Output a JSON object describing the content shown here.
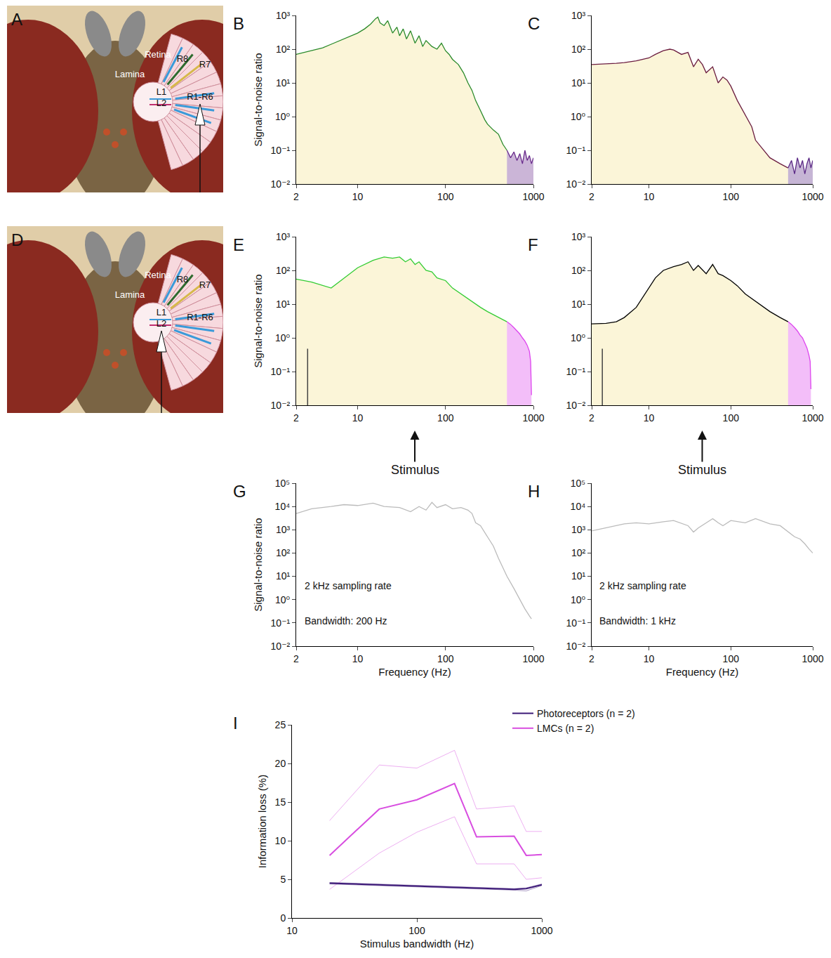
{
  "diagrams": [
    {
      "panel": "A",
      "labels": [
        "Retina",
        "Lamina",
        "R8",
        "R7",
        "L1",
        "L2",
        "R1-R6"
      ],
      "target": "R1-R6"
    },
    {
      "panel": "D",
      "labels": [
        "Retina",
        "Lamina",
        "R8",
        "R7",
        "L1",
        "L2",
        "R1-R6"
      ],
      "target": "L2"
    }
  ],
  "chart_data": [
    {
      "panel": "B",
      "type": "area",
      "log": true,
      "grid": false,
      "y_label": "Signal-to-noise ratio",
      "xlim": [
        2,
        1000
      ],
      "xticks": [
        2,
        10,
        100,
        1000
      ],
      "ylim": [
        0.01,
        1000
      ],
      "yticks": [
        {
          "value": 0.01,
          "label": "10⁻²"
        },
        {
          "value": 0.1,
          "label": "10⁻¹"
        },
        {
          "value": 1,
          "label": "10⁰"
        },
        {
          "value": 10,
          "label": "10¹"
        },
        {
          "value": 100,
          "label": "10²"
        },
        {
          "value": 1000,
          "label": "10³"
        }
      ],
      "threshold": 1,
      "series": [
        {
          "color": "#2a8a2a",
          "x": [
            2,
            3,
            4,
            5,
            6,
            7,
            8,
            10,
            12,
            14,
            16,
            17,
            18,
            20,
            22,
            25,
            28,
            30,
            33,
            36,
            40,
            45,
            50,
            55,
            60,
            70,
            80,
            90,
            100,
            110,
            120,
            140,
            160,
            180,
            200,
            220,
            250,
            280,
            300,
            350,
            400,
            450,
            500
          ],
          "values": [
            70,
            90,
            110,
            140,
            170,
            200,
            230,
            300,
            400,
            550,
            800,
            900,
            600,
            500,
            700,
            300,
            450,
            250,
            400,
            200,
            350,
            150,
            250,
            120,
            180,
            120,
            100,
            150,
            90,
            70,
            50,
            35,
            20,
            10,
            6,
            3,
            1.5,
            0.8,
            0.6,
            0.4,
            0.3,
            0.15,
            0.1
          ]
        },
        {
          "color": "#6a2c8c",
          "x": [
            500,
            550,
            600,
            650,
            700,
            750,
            800,
            850,
            900,
            950,
            1000
          ],
          "values": [
            0.1,
            0.06,
            0.09,
            0.05,
            0.08,
            0.04,
            0.1,
            0.05,
            0.07,
            0.04,
            0.06
          ]
        }
      ]
    },
    {
      "panel": "C",
      "type": "area",
      "log": true,
      "grid": false,
      "xlim": [
        2,
        1000
      ],
      "xticks": [
        2,
        10,
        100,
        1000
      ],
      "ylim": [
        0.01,
        1000
      ],
      "yticks": [
        {
          "value": 0.01,
          "label": "10⁻²"
        },
        {
          "value": 0.1,
          "label": "10⁻¹"
        },
        {
          "value": 1,
          "label": "10⁰"
        },
        {
          "value": 10,
          "label": "10¹"
        },
        {
          "value": 100,
          "label": "10²"
        },
        {
          "value": 1000,
          "label": "10³"
        }
      ],
      "threshold": 1,
      "series": [
        {
          "color": "#6b1d3f",
          "x": [
            2,
            3,
            4,
            5,
            7,
            10,
            12,
            15,
            18,
            20,
            25,
            30,
            35,
            40,
            45,
            50,
            60,
            70,
            80,
            90,
            100,
            120,
            140,
            160,
            180,
            200,
            250,
            300,
            400,
            500
          ],
          "values": [
            35,
            36,
            38,
            40,
            45,
            55,
            70,
            90,
            100,
            95,
            70,
            80,
            30,
            50,
            35,
            20,
            30,
            10,
            15,
            12,
            8,
            3,
            1.5,
            0.8,
            0.5,
            0.2,
            0.1,
            0.06,
            0.04,
            0.03
          ]
        },
        {
          "color": "#5c2a86",
          "x": [
            500,
            550,
            600,
            650,
            700,
            750,
            800,
            850,
            900,
            950,
            1000
          ],
          "values": [
            0.03,
            0.05,
            0.02,
            0.06,
            0.03,
            0.05,
            0.02,
            0.04,
            0.06,
            0.03,
            0.05
          ]
        }
      ]
    },
    {
      "panel": "E",
      "type": "area",
      "log": true,
      "grid": false,
      "y_label": "Signal-to-noise ratio",
      "xlim": [
        2,
        1000
      ],
      "xticks": [
        2,
        10,
        100,
        1000
      ],
      "ylim": [
        0.01,
        1000
      ],
      "yticks": [
        {
          "value": 0.01,
          "label": "10⁻²"
        },
        {
          "value": 0.1,
          "label": "10⁻¹"
        },
        {
          "value": 1,
          "label": "10⁰"
        },
        {
          "value": 10,
          "label": "10¹"
        },
        {
          "value": 100,
          "label": "10²"
        },
        {
          "value": 1000,
          "label": "10³"
        }
      ],
      "threshold": 1,
      "series": [
        {
          "color": "#33cc33",
          "x": [
            2,
            3,
            5,
            7,
            10,
            15,
            20,
            25,
            30,
            35,
            40,
            45,
            50,
            60,
            70,
            80,
            100,
            120,
            150,
            200,
            250,
            300,
            400,
            500
          ],
          "values": [
            55,
            45,
            30,
            60,
            120,
            200,
            250,
            230,
            250,
            180,
            220,
            150,
            180,
            100,
            90,
            60,
            50,
            30,
            20,
            12,
            8,
            6,
            4,
            3
          ]
        },
        {
          "color": "#dd44ee",
          "x": [
            500,
            550,
            600,
            650,
            700,
            750,
            800,
            850,
            900,
            930,
            950
          ],
          "values": [
            3,
            2.5,
            2,
            1.6,
            1.3,
            1,
            0.8,
            0.6,
            0.4,
            0.2,
            0.02
          ]
        }
      ]
    },
    {
      "panel": "F",
      "type": "area",
      "log": true,
      "grid": false,
      "xlim": [
        2,
        1000
      ],
      "xticks": [
        2,
        10,
        100,
        1000
      ],
      "ylim": [
        0.01,
        1000
      ],
      "yticks": [
        {
          "value": 0.01,
          "label": "10⁻²"
        },
        {
          "value": 0.1,
          "label": "10⁻¹"
        },
        {
          "value": 1,
          "label": "10⁰"
        },
        {
          "value": 10,
          "label": "10¹"
        },
        {
          "value": 100,
          "label": "10²"
        },
        {
          "value": 1000,
          "label": "10³"
        }
      ],
      "threshold": 1,
      "series": [
        {
          "color": "#000000",
          "x": [
            2,
            3,
            4,
            5,
            7,
            10,
            12,
            15,
            20,
            25,
            30,
            35,
            40,
            50,
            60,
            70,
            80,
            100,
            120,
            150,
            200,
            250,
            300,
            400,
            500
          ],
          "values": [
            2.6,
            2.7,
            3,
            4,
            8,
            30,
            60,
            100,
            130,
            150,
            180,
            100,
            140,
            80,
            150,
            80,
            70,
            50,
            35,
            20,
            12,
            8,
            6,
            4,
            3
          ]
        },
        {
          "color": "#dd44ee",
          "x": [
            500,
            550,
            600,
            650,
            700,
            750,
            800,
            850,
            900,
            930,
            950
          ],
          "values": [
            3,
            2.5,
            2,
            1.6,
            1.2,
            1,
            0.7,
            0.5,
            0.3,
            0.2,
            0.03
          ]
        }
      ]
    },
    {
      "panel": "G",
      "type": "line",
      "log": true,
      "grid": false,
      "y_label": "Signal-to-noise ratio",
      "x_label": "Frequency (Hz)",
      "xlim": [
        2,
        1000
      ],
      "xticks": [
        2,
        10,
        100,
        1000
      ],
      "ylim": [
        0.01,
        100000
      ],
      "yticks": [
        {
          "value": 0.01,
          "label": "10⁻²"
        },
        {
          "value": 0.1,
          "label": "10⁻¹"
        },
        {
          "value": 1,
          "label": "10⁰"
        },
        {
          "value": 10,
          "label": "10¹"
        },
        {
          "value": 100,
          "label": "10²"
        },
        {
          "value": 1000,
          "label": "10³"
        },
        {
          "value": 10000,
          "label": "10⁴"
        },
        {
          "value": 100000,
          "label": "10⁵"
        }
      ],
      "threshold": 1,
      "annotations": [
        "2 kHz sampling rate",
        "Bandwidth: 200 Hz"
      ],
      "arrow_label": "Stimulus",
      "series": [
        {
          "color": "#bbbbbb",
          "x": [
            2,
            3,
            5,
            7,
            10,
            15,
            20,
            30,
            40,
            50,
            60,
            70,
            80,
            100,
            120,
            150,
            180,
            200,
            220,
            250,
            300,
            350,
            400,
            500,
            600,
            700,
            800,
            900,
            950
          ],
          "values": [
            5000,
            8000,
            10000,
            12000,
            11000,
            14000,
            10000,
            9000,
            6000,
            10000,
            7000,
            15000,
            9000,
            12000,
            8000,
            9000,
            7000,
            5000,
            2000,
            1500,
            500,
            200,
            60,
            10,
            3,
            1,
            0.4,
            0.2,
            0.15
          ]
        }
      ]
    },
    {
      "panel": "H",
      "type": "line",
      "log": true,
      "grid": false,
      "x_label": "Frequency (Hz)",
      "xlim": [
        2,
        1000
      ],
      "xticks": [
        2,
        10,
        100,
        1000
      ],
      "ylim": [
        0.01,
        100000
      ],
      "yticks": [
        {
          "value": 0.01,
          "label": "10⁻²"
        },
        {
          "value": 0.1,
          "label": "10⁻¹"
        },
        {
          "value": 1,
          "label": "10⁰"
        },
        {
          "value": 10,
          "label": "10¹"
        },
        {
          "value": 100,
          "label": "10²"
        },
        {
          "value": 1000,
          "label": "10³"
        },
        {
          "value": 10000,
          "label": "10⁴"
        },
        {
          "value": 100000,
          "label": "10⁵"
        }
      ],
      "threshold": 1,
      "annotations": [
        "2 kHz sampling rate",
        "Bandwidth: 1 kHz"
      ],
      "arrow_label": "Stimulus",
      "series": [
        {
          "color": "#bbbbbb",
          "x": [
            2,
            3,
            5,
            7,
            10,
            15,
            20,
            30,
            35,
            40,
            50,
            60,
            70,
            80,
            100,
            150,
            200,
            300,
            400,
            500,
            600,
            700,
            800,
            900,
            1000
          ],
          "values": [
            900,
            1200,
            1800,
            2000,
            1800,
            2200,
            2500,
            1500,
            800,
            1200,
            2000,
            3000,
            2000,
            1500,
            2500,
            2000,
            3000,
            1800,
            1500,
            800,
            500,
            400,
            250,
            150,
            100
          ]
        }
      ]
    },
    {
      "panel": "I",
      "type": "line",
      "log": "x",
      "grid": false,
      "legend": "top right",
      "x_label": "Stimulus bandwidth (Hz)",
      "y_label": "Information loss (%)",
      "xlim": [
        10,
        1000
      ],
      "xticks": [
        10,
        100,
        1000
      ],
      "ylim": [
        0,
        25
      ],
      "yticks": [
        0,
        5,
        10,
        15,
        20,
        25
      ],
      "series": [
        {
          "name": "Photoreceptors (n = 2)",
          "color": "#3d1a78",
          "x": [
            20,
            50,
            100,
            200,
            300,
            600,
            750,
            1000
          ],
          "values": [
            4.5,
            4.3,
            4.1,
            4.0,
            3.9,
            3.7,
            3.8,
            4.3
          ],
          "lower": [
            4.4,
            4.2,
            4.0,
            3.9,
            3.8,
            3.6,
            3.5,
            4.2
          ],
          "upper": [
            4.6,
            4.4,
            4.2,
            4.1,
            4.0,
            3.8,
            3.9,
            4.4
          ]
        },
        {
          "name": "LMCs (n = 2)",
          "color": "#d84ee0",
          "x": [
            20,
            50,
            100,
            200,
            300,
            600,
            750,
            1000
          ],
          "values": [
            8.1,
            14.1,
            15.3,
            17.4,
            10.5,
            10.6,
            8.1,
            8.2
          ],
          "lower": [
            3.7,
            8.4,
            11.1,
            13.1,
            7.0,
            7.0,
            5.0,
            5.2
          ],
          "upper": [
            12.6,
            19.8,
            19.4,
            21.7,
            14.1,
            14.5,
            11.2,
            11.2
          ]
        }
      ]
    }
  ]
}
